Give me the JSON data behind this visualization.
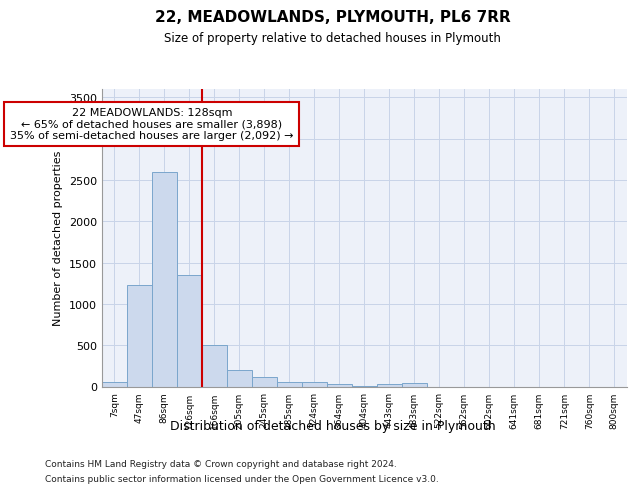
{
  "title": "22, MEADOWLANDS, PLYMOUTH, PL6 7RR",
  "subtitle": "Size of property relative to detached houses in Plymouth",
  "xlabel": "Distribution of detached houses by size in Plymouth",
  "ylabel": "Number of detached properties",
  "bins": [
    "7sqm",
    "47sqm",
    "86sqm",
    "126sqm",
    "166sqm",
    "205sqm",
    "245sqm",
    "285sqm",
    "324sqm",
    "364sqm",
    "404sqm",
    "443sqm",
    "483sqm",
    "522sqm",
    "562sqm",
    "602sqm",
    "641sqm",
    "681sqm",
    "721sqm",
    "760sqm",
    "800sqm"
  ],
  "values": [
    50,
    1230,
    2590,
    1350,
    500,
    200,
    110,
    55,
    50,
    30,
    10,
    30,
    40,
    0,
    0,
    0,
    0,
    0,
    0,
    0,
    0
  ],
  "bar_color": "#ccd9ed",
  "bar_edge_color": "#7aa6cc",
  "bar_edge_width": 0.7,
  "vline_color": "#cc0000",
  "annotation_line1": "22 MEADOWLANDS: 128sqm",
  "annotation_line2": "← 65% of detached houses are smaller (3,898)",
  "annotation_line3": "35% of semi-detached houses are larger (2,092) →",
  "annotation_box_color": "#cc0000",
  "grid_color": "#c8d4e8",
  "background_color": "#edf1f9",
  "ylim": [
    0,
    3600
  ],
  "yticks": [
    0,
    500,
    1000,
    1500,
    2000,
    2500,
    3000,
    3500
  ],
  "footer_line1": "Contains HM Land Registry data © Crown copyright and database right 2024.",
  "footer_line2": "Contains public sector information licensed under the Open Government Licence v3.0."
}
